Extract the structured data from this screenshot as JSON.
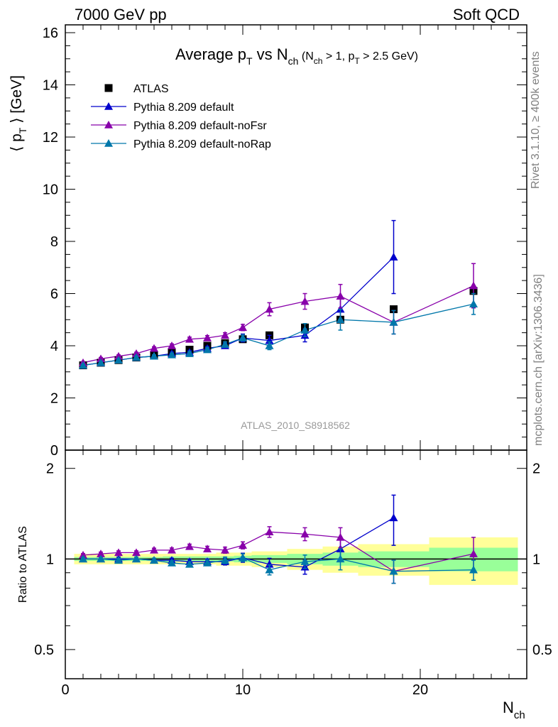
{
  "header": {
    "left": "7000 GeV pp",
    "right": "Soft QCD"
  },
  "side_labels": {
    "rivet": "Rivet 3.1.10, ≥ 400k events",
    "mcplots": "mcplots.cern.ch [arXiv:1306.3436]"
  },
  "colors": {
    "atlas": "#000000",
    "default": "#0000cc",
    "noFsr": "#8800aa",
    "noRap": "#0077aa",
    "band_outer": "#ffff99",
    "band_inner": "#99ff99"
  },
  "chart_data": [
    {
      "type": "scatter",
      "title_main": "Average p",
      "title_main_sub": "T",
      "title_mid": " vs N",
      "title_mid_sub": "ch",
      "title_cond_1": " (N",
      "title_cond_1_sub": "ch",
      "title_cond_2": " > 1, p",
      "title_cond_2_sub": "T",
      "title_cond_3": " > 2.5 GeV)",
      "ylabel_1": "⟨ p",
      "ylabel_sub": "T",
      "ylabel_2": " ⟩  [GeV]",
      "analysis_label": "ATLAS_2010_S8918562",
      "xlim": [
        0,
        26
      ],
      "ylim": [
        0,
        16.3
      ],
      "y_ticks": [
        "0",
        "2",
        "4",
        "6",
        "8",
        "10",
        "12",
        "14",
        "16"
      ],
      "grid": false,
      "legend_position": "top-left",
      "series": [
        {
          "name": "ATLAS",
          "marker": "square",
          "x": [
            1,
            2,
            3,
            4,
            5,
            6,
            7,
            8,
            9,
            10,
            11.5,
            13.5,
            15.5,
            18.5,
            23
          ],
          "y": [
            3.25,
            3.35,
            3.45,
            3.55,
            3.65,
            3.75,
            3.85,
            4.0,
            4.1,
            4.25,
            4.4,
            4.7,
            5.0,
            5.4,
            6.1
          ]
        },
        {
          "name": "Pythia 8.209 default",
          "marker": "triangle",
          "x": [
            1,
            2,
            3,
            4,
            5,
            6,
            7,
            8,
            9,
            10,
            11.5,
            13.5,
            15.5,
            18.5
          ],
          "y": [
            3.25,
            3.35,
            3.45,
            3.55,
            3.6,
            3.7,
            3.75,
            3.9,
            4.0,
            4.3,
            4.2,
            4.4,
            5.4,
            7.4
          ],
          "err": [
            0.05,
            0.05,
            0.05,
            0.05,
            0.05,
            0.06,
            0.07,
            0.08,
            0.1,
            0.15,
            0.2,
            0.25,
            0.4,
            1.4
          ]
        },
        {
          "name": "Pythia 8.209 default-noFsr",
          "marker": "triangle",
          "x": [
            1,
            2,
            3,
            4,
            5,
            6,
            7,
            8,
            9,
            10,
            11.5,
            13.5,
            15.5,
            18.5,
            23
          ],
          "y": [
            3.35,
            3.5,
            3.6,
            3.7,
            3.9,
            4.0,
            4.25,
            4.3,
            4.4,
            4.7,
            5.4,
            5.7,
            5.9,
            4.9,
            6.3
          ],
          "err": [
            0.04,
            0.05,
            0.05,
            0.05,
            0.06,
            0.07,
            0.08,
            0.09,
            0.1,
            0.12,
            0.25,
            0.3,
            0.45,
            0.45,
            0.85
          ]
        },
        {
          "name": "Pythia 8.209 default-noRap",
          "marker": "triangle",
          "x": [
            1,
            2,
            3,
            4,
            5,
            6,
            7,
            8,
            9,
            10,
            11.5,
            13.5,
            15.5,
            18.5,
            23
          ],
          "y": [
            3.25,
            3.35,
            3.45,
            3.55,
            3.6,
            3.65,
            3.7,
            3.85,
            4.05,
            4.3,
            4.0,
            4.6,
            5.0,
            4.9,
            5.6
          ],
          "err": [
            0.04,
            0.04,
            0.05,
            0.05,
            0.05,
            0.06,
            0.07,
            0.08,
            0.1,
            0.12,
            0.15,
            0.25,
            0.4,
            0.45,
            0.4
          ]
        }
      ]
    },
    {
      "type": "scatter",
      "ylabel": "Ratio to ATLAS",
      "xlabel": "N",
      "xlabel_sub": "ch",
      "xlim": [
        0,
        26
      ],
      "ylim": [
        0.4,
        2.3
      ],
      "y_scale": "log",
      "y_ticks": [
        "0.5",
        "1",
        "2"
      ],
      "x_ticks": [
        "0",
        "10",
        "20"
      ],
      "reference_line": 1,
      "uncertainty_bands": {
        "edges": [
          0.5,
          1.5,
          2.5,
          3.5,
          4.5,
          5.5,
          6.5,
          7.5,
          8.5,
          9.5,
          10.5,
          12.5,
          14.5,
          16.5,
          20.5,
          25.5
        ],
        "outer": [
          0.04,
          0.04,
          0.04,
          0.04,
          0.04,
          0.04,
          0.04,
          0.04,
          0.05,
          0.05,
          0.06,
          0.08,
          0.1,
          0.12,
          0.18
        ],
        "inner": [
          0.015,
          0.015,
          0.015,
          0.015,
          0.015,
          0.02,
          0.02,
          0.02,
          0.02,
          0.025,
          0.03,
          0.04,
          0.05,
          0.06,
          0.09
        ]
      },
      "series": [
        {
          "name": "Pythia 8.209 default",
          "x": [
            1,
            2,
            3,
            4,
            5,
            6,
            7,
            8,
            9,
            10,
            11.5,
            13.5,
            15.5,
            18.5
          ],
          "y": [
            1.0,
            1.0,
            1.0,
            1.0,
            0.99,
            0.99,
            0.98,
            0.98,
            0.98,
            1.01,
            0.96,
            0.94,
            1.08,
            1.37
          ],
          "err": [
            0.015,
            0.015,
            0.015,
            0.015,
            0.015,
            0.016,
            0.018,
            0.02,
            0.025,
            0.035,
            0.045,
            0.05,
            0.08,
            0.26
          ]
        },
        {
          "name": "Pythia 8.209 default-noFsr",
          "x": [
            1,
            2,
            3,
            4,
            5,
            6,
            7,
            8,
            9,
            10,
            11.5,
            13.5,
            15.5,
            18.5,
            23
          ],
          "y": [
            1.03,
            1.04,
            1.05,
            1.05,
            1.07,
            1.07,
            1.1,
            1.08,
            1.07,
            1.11,
            1.23,
            1.21,
            1.18,
            0.91,
            1.04
          ],
          "err": [
            0.012,
            0.014,
            0.014,
            0.014,
            0.016,
            0.018,
            0.02,
            0.022,
            0.025,
            0.03,
            0.05,
            0.06,
            0.09,
            0.08,
            0.14
          ]
        },
        {
          "name": "Pythia 8.209 default-noRap",
          "x": [
            1,
            2,
            3,
            4,
            5,
            6,
            7,
            8,
            9,
            10,
            11.5,
            13.5,
            15.5,
            18.5,
            23
          ],
          "y": [
            1.0,
            1.0,
            0.99,
            1.0,
            0.99,
            0.97,
            0.96,
            0.97,
            0.99,
            1.01,
            0.92,
            0.98,
            1.0,
            0.91,
            0.92
          ],
          "err": [
            0.012,
            0.012,
            0.014,
            0.014,
            0.014,
            0.016,
            0.018,
            0.02,
            0.025,
            0.03,
            0.035,
            0.05,
            0.08,
            0.08,
            0.07
          ]
        }
      ]
    }
  ]
}
